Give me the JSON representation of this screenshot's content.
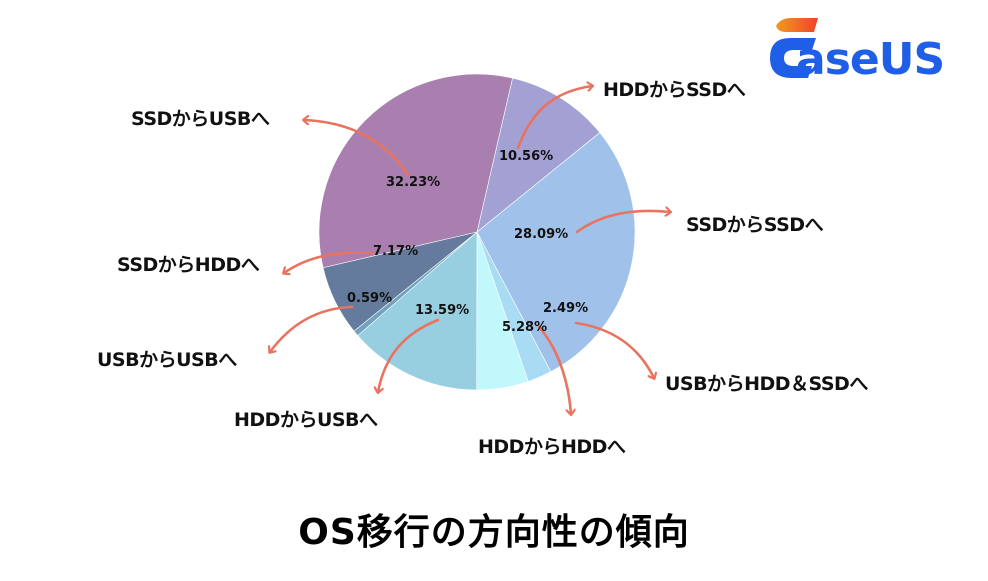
{
  "brand": {
    "name": "aseUS",
    "full_name": "EaseUS",
    "colors": {
      "primary": "#1f5ee6",
      "accent_top": "#f05a2a",
      "accent_bottom": "#f39a1e"
    }
  },
  "title": "OS移行の方向性の傾向",
  "chart_data": {
    "type": "pie",
    "title": "OS移行の方向性の傾向",
    "start_angle_deg": 13,
    "direction": "clockwise",
    "center": [
      477,
      232
    ],
    "radius": 158,
    "slices": [
      {
        "label": "HDDからSSDへ",
        "value": 10.56,
        "pct_label": "10.56%",
        "color": "#a3a0d3"
      },
      {
        "label": "SSDからSSDへ",
        "value": 28.09,
        "pct_label": "28.09%",
        "color": "#a0c2ea"
      },
      {
        "label": "USBからHDD＆SSDへ",
        "value": 2.49,
        "pct_label": "2.49%",
        "color": "#a8dcf4"
      },
      {
        "label": "HDDからHDDへ",
        "value": 5.28,
        "pct_label": "5.28%",
        "color": "#c0f8fb"
      },
      {
        "label": "HDDからUSBへ",
        "value": 13.59,
        "pct_label": "13.59%",
        "color": "#98cfe0"
      },
      {
        "label": "USBからUSBへ",
        "value": 0.59,
        "pct_label": "0.59%",
        "color": "#72a2bf"
      },
      {
        "label": "SSDからHDDへ",
        "value": 7.17,
        "pct_label": "7.17%",
        "color": "#647b9d"
      },
      {
        "label": "SSDからUSBへ",
        "value": 32.23,
        "pct_label": "32.23%",
        "color": "#a87fae"
      }
    ],
    "arrow_color": "#e8735e"
  },
  "labels": {
    "hdd_ssd": "HDDからSSDへ",
    "ssd_ssd": "SSDからSSDへ",
    "usb_hdd_ssd": "USBからHDD＆SSDへ",
    "hdd_hdd": "HDDからHDDへ",
    "hdd_usb": "HDDからUSBへ",
    "usb_usb": "USBからUSBへ",
    "ssd_hdd": "SSDからHDDへ",
    "ssd_usb": "SSDからUSBへ"
  },
  "percents": {
    "hdd_ssd": "10.56%",
    "ssd_ssd": "28.09%",
    "usb_hdd_ssd": "2.49%",
    "hdd_hdd": "5.28%",
    "hdd_usb": "13.59%",
    "usb_usb": "0.59%",
    "ssd_hdd": "7.17%",
    "ssd_usb": "32.23%"
  }
}
